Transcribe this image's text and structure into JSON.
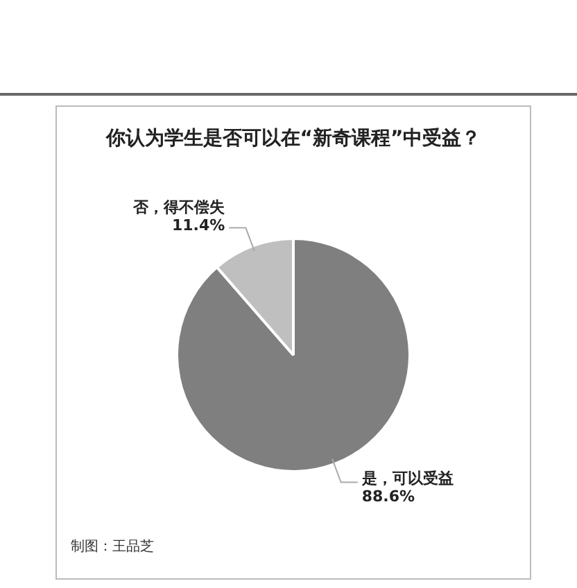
{
  "chart_data": {
    "type": "pie",
    "title": "你认为学生是否可以在“新奇课程”中受益？",
    "categories": [
      "是，可以受益",
      "否，得不偿失"
    ],
    "values": [
      88.6,
      11.4
    ],
    "value_labels": [
      "88.6%",
      "11.4%"
    ],
    "colors": [
      "#7f7f7f",
      "#bfbfbf"
    ],
    "annotations": [
      "制图：王品芝"
    ]
  }
}
